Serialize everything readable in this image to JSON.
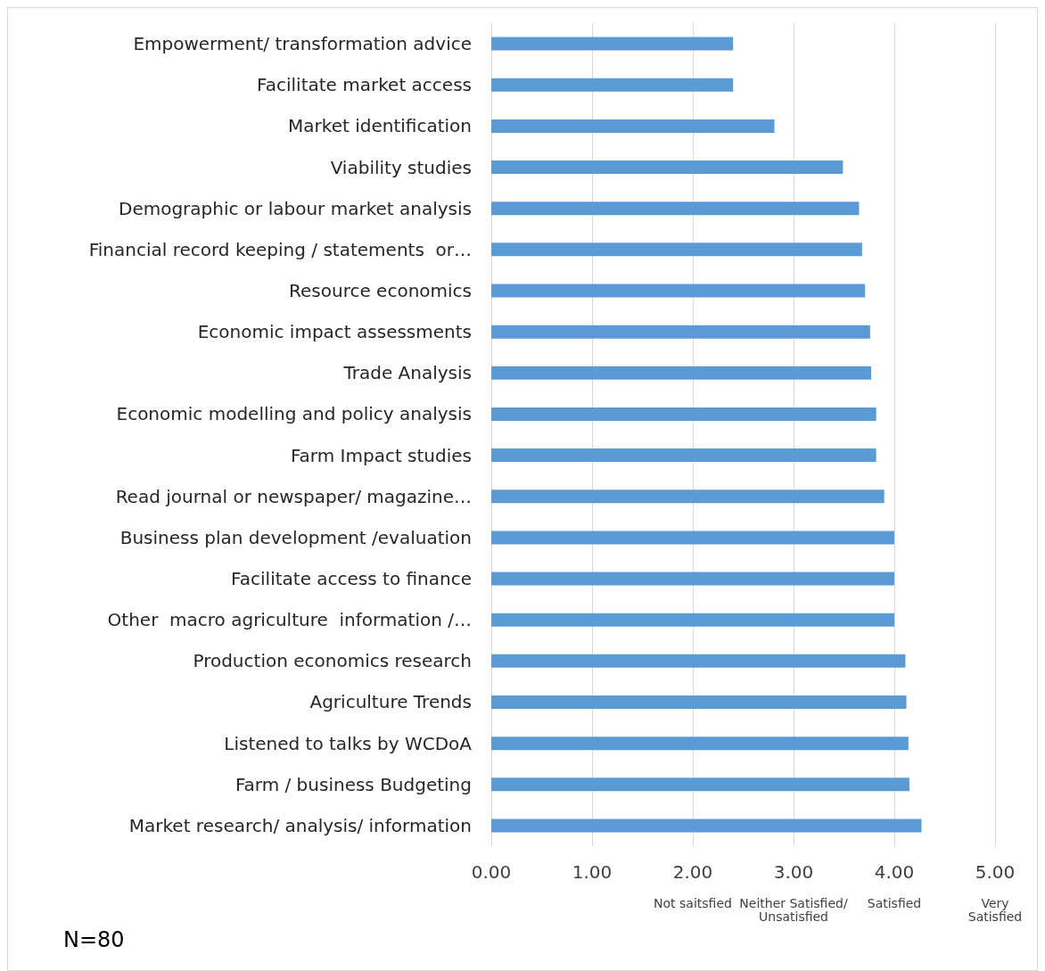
{
  "chart_data": {
    "type": "bar",
    "orientation": "horizontal",
    "categories": [
      "Empowerment/ transformation advice",
      "Facilitate market access",
      "Market identification",
      "Viability studies",
      "Demographic or labour market analysis",
      "Financial record keeping / statements  or…",
      "Resource economics",
      "Economic impact assessments",
      "Trade Analysis",
      "Economic modelling and policy analysis",
      "Farm Impact studies",
      "Read journal or newspaper/ magazine…",
      "Business plan development /evaluation",
      "Facilitate access to finance",
      "Other  macro agriculture  information /…",
      "Production economics research",
      "Agriculture Trends",
      "Listened to talks by WCDoA",
      "Farm / business Budgeting",
      "Market research/ analysis/ information"
    ],
    "values": [
      2.4,
      2.4,
      2.81,
      3.49,
      3.65,
      3.68,
      3.71,
      3.76,
      3.77,
      3.82,
      3.82,
      3.9,
      4.0,
      4.0,
      4.0,
      4.11,
      4.12,
      4.14,
      4.15,
      4.27
    ],
    "color": "#5b9bd5",
    "xlim": [
      0,
      5
    ],
    "xticks": [
      {
        "value": 0,
        "label": "0.00"
      },
      {
        "value": 1,
        "label": "1.00"
      },
      {
        "value": 2,
        "label": "2.00\n\nNot saitsfied"
      },
      {
        "value": 3,
        "label": "3.00\n\nNeither Satisfied/\nUnsatisfied"
      },
      {
        "value": 4,
        "label": "4.00\n\nSatisfied"
      },
      {
        "value": 5,
        "label": "5.00\n\nVery\nSatisfied"
      }
    ],
    "grid": "x",
    "annotations": [
      "N=80"
    ]
  }
}
